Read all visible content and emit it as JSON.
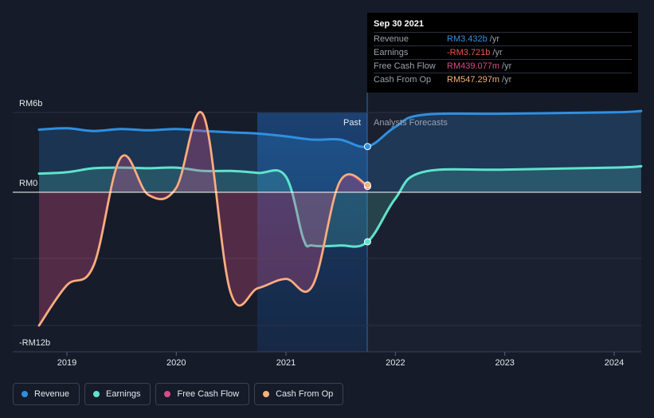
{
  "chart_data": {
    "type": "line",
    "y_axis": {
      "top_label": "RM6b",
      "zero_label": "RM0",
      "bottom_label": "-RM12b",
      "min": -12,
      "max": 6,
      "unit": "RM billions"
    },
    "x_ticks": [
      "2019",
      "2020",
      "2021",
      "2022",
      "2023",
      "2024"
    ],
    "regions": {
      "past_label": "Past",
      "forecast_label": "Analysts Forecasts",
      "divider_date": "2021-09-30"
    },
    "series": [
      {
        "name": "Revenue",
        "color": "#2f8fe0",
        "points": [
          [
            "2018-09-30",
            4.7
          ],
          [
            "2018-12-31",
            4.8
          ],
          [
            "2019-03-31",
            4.6
          ],
          [
            "2019-06-30",
            4.75
          ],
          [
            "2019-09-30",
            4.65
          ],
          [
            "2019-12-31",
            4.75
          ],
          [
            "2020-03-31",
            4.6
          ],
          [
            "2020-06-30",
            4.5
          ],
          [
            "2020-09-30",
            4.4
          ],
          [
            "2020-12-31",
            4.2
          ],
          [
            "2021-03-31",
            3.95
          ],
          [
            "2021-06-30",
            3.95
          ],
          [
            "2021-09-30",
            3.432
          ],
          [
            "2021-12-31",
            4.9
          ],
          [
            "2022-03-31",
            5.8
          ],
          [
            "2022-12-31",
            5.9
          ],
          [
            "2023-12-31",
            6.0
          ],
          [
            "2024-03-31",
            6.1
          ]
        ]
      },
      {
        "name": "Earnings",
        "color": "#5fe3cc",
        "points": [
          [
            "2018-09-30",
            1.4
          ],
          [
            "2018-12-31",
            1.5
          ],
          [
            "2019-03-31",
            1.8
          ],
          [
            "2019-06-30",
            1.85
          ],
          [
            "2019-09-30",
            1.8
          ],
          [
            "2019-12-31",
            1.85
          ],
          [
            "2020-03-31",
            1.6
          ],
          [
            "2020-06-30",
            1.6
          ],
          [
            "2020-09-30",
            1.45
          ],
          [
            "2020-12-31",
            1.2
          ],
          [
            "2021-02-28",
            -3.5
          ],
          [
            "2021-03-31",
            -4.0
          ],
          [
            "2021-06-30",
            -4.0
          ],
          [
            "2021-09-30",
            -3.721
          ],
          [
            "2021-12-31",
            -0.5
          ],
          [
            "2022-03-31",
            1.5
          ],
          [
            "2022-12-31",
            1.7
          ],
          [
            "2023-12-31",
            1.85
          ],
          [
            "2024-03-31",
            1.95
          ]
        ]
      },
      {
        "name": "Free Cash Flow",
        "color": "#d44d86",
        "points": [
          [
            "2018-09-30",
            -10.0
          ],
          [
            "2018-12-31",
            -7.0
          ],
          [
            "2019-03-31",
            -5.5
          ],
          [
            "2019-06-30",
            2.6
          ],
          [
            "2019-09-30",
            -0.2
          ],
          [
            "2019-12-31",
            0.3
          ],
          [
            "2020-03-31",
            5.8
          ],
          [
            "2020-06-30",
            -7.5
          ],
          [
            "2020-09-30",
            -7.2
          ],
          [
            "2020-12-31",
            -6.5
          ],
          [
            "2021-03-31",
            -7.0
          ],
          [
            "2021-06-30",
            0.8
          ],
          [
            "2021-09-30",
            0.439
          ]
        ]
      },
      {
        "name": "Cash From Op",
        "color": "#f2b37a",
        "points": [
          [
            "2018-09-30",
            -10.0
          ],
          [
            "2018-12-31",
            -7.0
          ],
          [
            "2019-03-31",
            -5.5
          ],
          [
            "2019-06-30",
            2.6
          ],
          [
            "2019-09-30",
            -0.2
          ],
          [
            "2019-12-31",
            0.3
          ],
          [
            "2020-03-31",
            5.8
          ],
          [
            "2020-06-30",
            -7.5
          ],
          [
            "2020-09-30",
            -7.2
          ],
          [
            "2020-12-31",
            -6.5
          ],
          [
            "2021-03-31",
            -7.0
          ],
          [
            "2021-06-30",
            0.8
          ],
          [
            "2021-09-30",
            0.547
          ]
        ]
      }
    ]
  },
  "tooltip": {
    "date": "Sep 30 2021",
    "rows": [
      {
        "label": "Revenue",
        "value": "RM3.432b",
        "unit": "/yr",
        "color": "#2f8fe0"
      },
      {
        "label": "Earnings",
        "value": "-RM3.721b",
        "unit": "/yr",
        "color": "#f0544a"
      },
      {
        "label": "Free Cash Flow",
        "value": "RM439.077m",
        "unit": "/yr",
        "color": "#d44d86"
      },
      {
        "label": "Cash From Op",
        "value": "RM547.297m",
        "unit": "/yr",
        "color": "#f2b37a"
      }
    ]
  },
  "legend": [
    {
      "label": "Revenue",
      "color": "#2f8fe0"
    },
    {
      "label": "Earnings",
      "color": "#5fe3cc"
    },
    {
      "label": "Free Cash Flow",
      "color": "#d44d86"
    },
    {
      "label": "Cash From Op",
      "color": "#f2b37a"
    }
  ]
}
